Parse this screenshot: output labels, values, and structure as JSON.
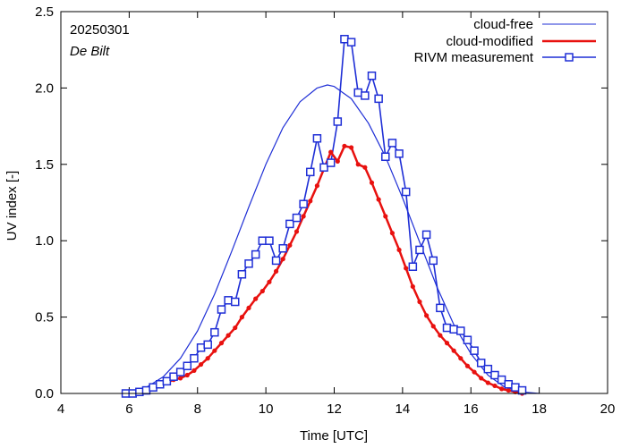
{
  "chart_data": {
    "type": "line",
    "title": "",
    "annotations": {
      "date": "20250301",
      "site": "De Bilt"
    },
    "xlabel": "Time  [UTC]",
    "ylabel": "UV index  [-]",
    "xlim": [
      4,
      20
    ],
    "ylim": [
      0.0,
      2.5
    ],
    "xticks": [
      "4",
      "6",
      "8",
      "10",
      "12",
      "14",
      "16",
      "18",
      "20"
    ],
    "yticks": [
      "0.0",
      "0.5",
      "1.0",
      "1.5",
      "2.0",
      "2.5"
    ],
    "grid": false,
    "legend_position": "top-right",
    "colors": {
      "cloud_free": "#1f2fd6",
      "cloud_modified": "#e8110f",
      "measurement": "#1f2fd6",
      "axes": "#000000"
    },
    "series": [
      {
        "name": "cloud-free",
        "style": "thin-line",
        "x": [
          5.8,
          6.0,
          6.5,
          7.0,
          7.5,
          8.0,
          8.5,
          9.0,
          9.5,
          10.0,
          10.5,
          11.0,
          11.5,
          11.8,
          12.0,
          12.5,
          13.0,
          13.5,
          14.0,
          14.5,
          15.0,
          15.5,
          16.0,
          16.5,
          17.0,
          17.5,
          18.0
        ],
        "y": [
          0.0,
          0.01,
          0.04,
          0.11,
          0.23,
          0.41,
          0.65,
          0.93,
          1.22,
          1.5,
          1.74,
          1.91,
          2.0,
          2.02,
          2.01,
          1.93,
          1.77,
          1.55,
          1.28,
          0.99,
          0.7,
          0.45,
          0.26,
          0.12,
          0.04,
          0.01,
          0.0
        ]
      },
      {
        "name": "cloud-modified",
        "style": "thick-line-dots",
        "x": [
          5.9,
          6.1,
          6.3,
          6.5,
          6.7,
          6.9,
          7.1,
          7.3,
          7.5,
          7.7,
          7.9,
          8.1,
          8.3,
          8.5,
          8.7,
          8.9,
          9.1,
          9.3,
          9.5,
          9.7,
          9.9,
          10.1,
          10.3,
          10.5,
          10.7,
          10.9,
          11.1,
          11.3,
          11.5,
          11.7,
          11.9,
          12.1,
          12.3,
          12.5,
          12.7,
          12.9,
          13.1,
          13.3,
          13.5,
          13.7,
          13.9,
          14.1,
          14.3,
          14.5,
          14.7,
          14.9,
          15.1,
          15.3,
          15.5,
          15.7,
          15.9,
          16.1,
          16.3,
          16.5,
          16.7,
          16.9,
          17.1,
          17.3,
          17.5
        ],
        "y": [
          0.0,
          0.0,
          0.01,
          0.02,
          0.03,
          0.05,
          0.07,
          0.09,
          0.1,
          0.12,
          0.15,
          0.19,
          0.23,
          0.28,
          0.33,
          0.38,
          0.43,
          0.5,
          0.56,
          0.62,
          0.67,
          0.73,
          0.8,
          0.88,
          0.97,
          1.06,
          1.16,
          1.26,
          1.36,
          1.47,
          1.58,
          1.52,
          1.62,
          1.61,
          1.5,
          1.48,
          1.38,
          1.27,
          1.16,
          1.05,
          0.94,
          0.82,
          0.7,
          0.6,
          0.51,
          0.44,
          0.38,
          0.33,
          0.28,
          0.23,
          0.18,
          0.14,
          0.1,
          0.07,
          0.05,
          0.03,
          0.02,
          0.01,
          0.0
        ]
      },
      {
        "name": "RIVM measurement",
        "style": "line-squares",
        "x": [
          5.9,
          6.1,
          6.3,
          6.5,
          6.7,
          6.9,
          7.1,
          7.3,
          7.5,
          7.7,
          7.9,
          8.1,
          8.3,
          8.5,
          8.7,
          8.9,
          9.1,
          9.3,
          9.5,
          9.7,
          9.9,
          10.1,
          10.3,
          10.5,
          10.7,
          10.9,
          11.1,
          11.3,
          11.5,
          11.7,
          11.9,
          12.1,
          12.3,
          12.5,
          12.7,
          12.9,
          13.1,
          13.3,
          13.5,
          13.7,
          13.9,
          14.1,
          14.3,
          14.5,
          14.7,
          14.9,
          15.1,
          15.3,
          15.5,
          15.7,
          15.9,
          16.1,
          16.3,
          16.5,
          16.7,
          16.9,
          17.1,
          17.3,
          17.5
        ],
        "y": [
          0.0,
          0.0,
          0.01,
          0.02,
          0.04,
          0.06,
          0.08,
          0.11,
          0.14,
          0.18,
          0.23,
          0.3,
          0.32,
          0.4,
          0.55,
          0.61,
          0.6,
          0.78,
          0.85,
          0.91,
          1.0,
          1.0,
          0.87,
          0.95,
          1.11,
          1.15,
          1.24,
          1.45,
          1.67,
          1.48,
          1.51,
          1.78,
          2.32,
          2.3,
          1.97,
          1.95,
          2.08,
          1.93,
          1.55,
          1.64,
          1.57,
          1.32,
          0.83,
          0.94,
          1.04,
          0.87,
          0.56,
          0.43,
          0.42,
          0.41,
          0.35,
          0.28,
          0.2,
          0.16,
          0.12,
          0.09,
          0.06,
          0.04,
          0.02
        ]
      }
    ]
  }
}
